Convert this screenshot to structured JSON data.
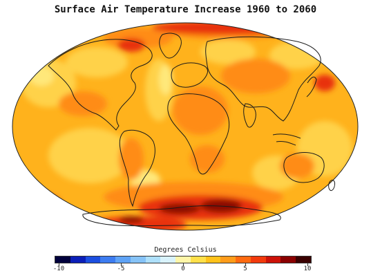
{
  "title": "Surface Air Temperature Increase 1960 to 2060",
  "legend": {
    "title": "Degrees Celsius",
    "min": -10,
    "max": 10,
    "ticks": [
      {
        "value": -10,
        "label": "-10"
      },
      {
        "value": -5,
        "label": "-5"
      },
      {
        "value": 0,
        "label": "0"
      },
      {
        "value": 5,
        "label": "5"
      },
      {
        "value": 10,
        "label": "10"
      }
    ],
    "colors": [
      "#00003c",
      "#0b1fb8",
      "#1c4fe0",
      "#3d7cf0",
      "#5fa3f6",
      "#86c3f7",
      "#aee0fb",
      "#d9f3fc",
      "#fff6a8",
      "#ffe04a",
      "#ffc21a",
      "#ff9c1a",
      "#ff6a10",
      "#f23a0c",
      "#cc1208",
      "#8a0000",
      "#3a0000"
    ]
  },
  "map": {
    "projection": "mollweide",
    "ocean_base_color": "#ffb21c",
    "warm_color": "#ff8c16",
    "hot_color": "#e8300c",
    "hottest_color": "#8a0a06",
    "cool_color": "#ffd24a",
    "coolest_color": "#ffe87a",
    "coastline_color": "#1a1a1a"
  }
}
